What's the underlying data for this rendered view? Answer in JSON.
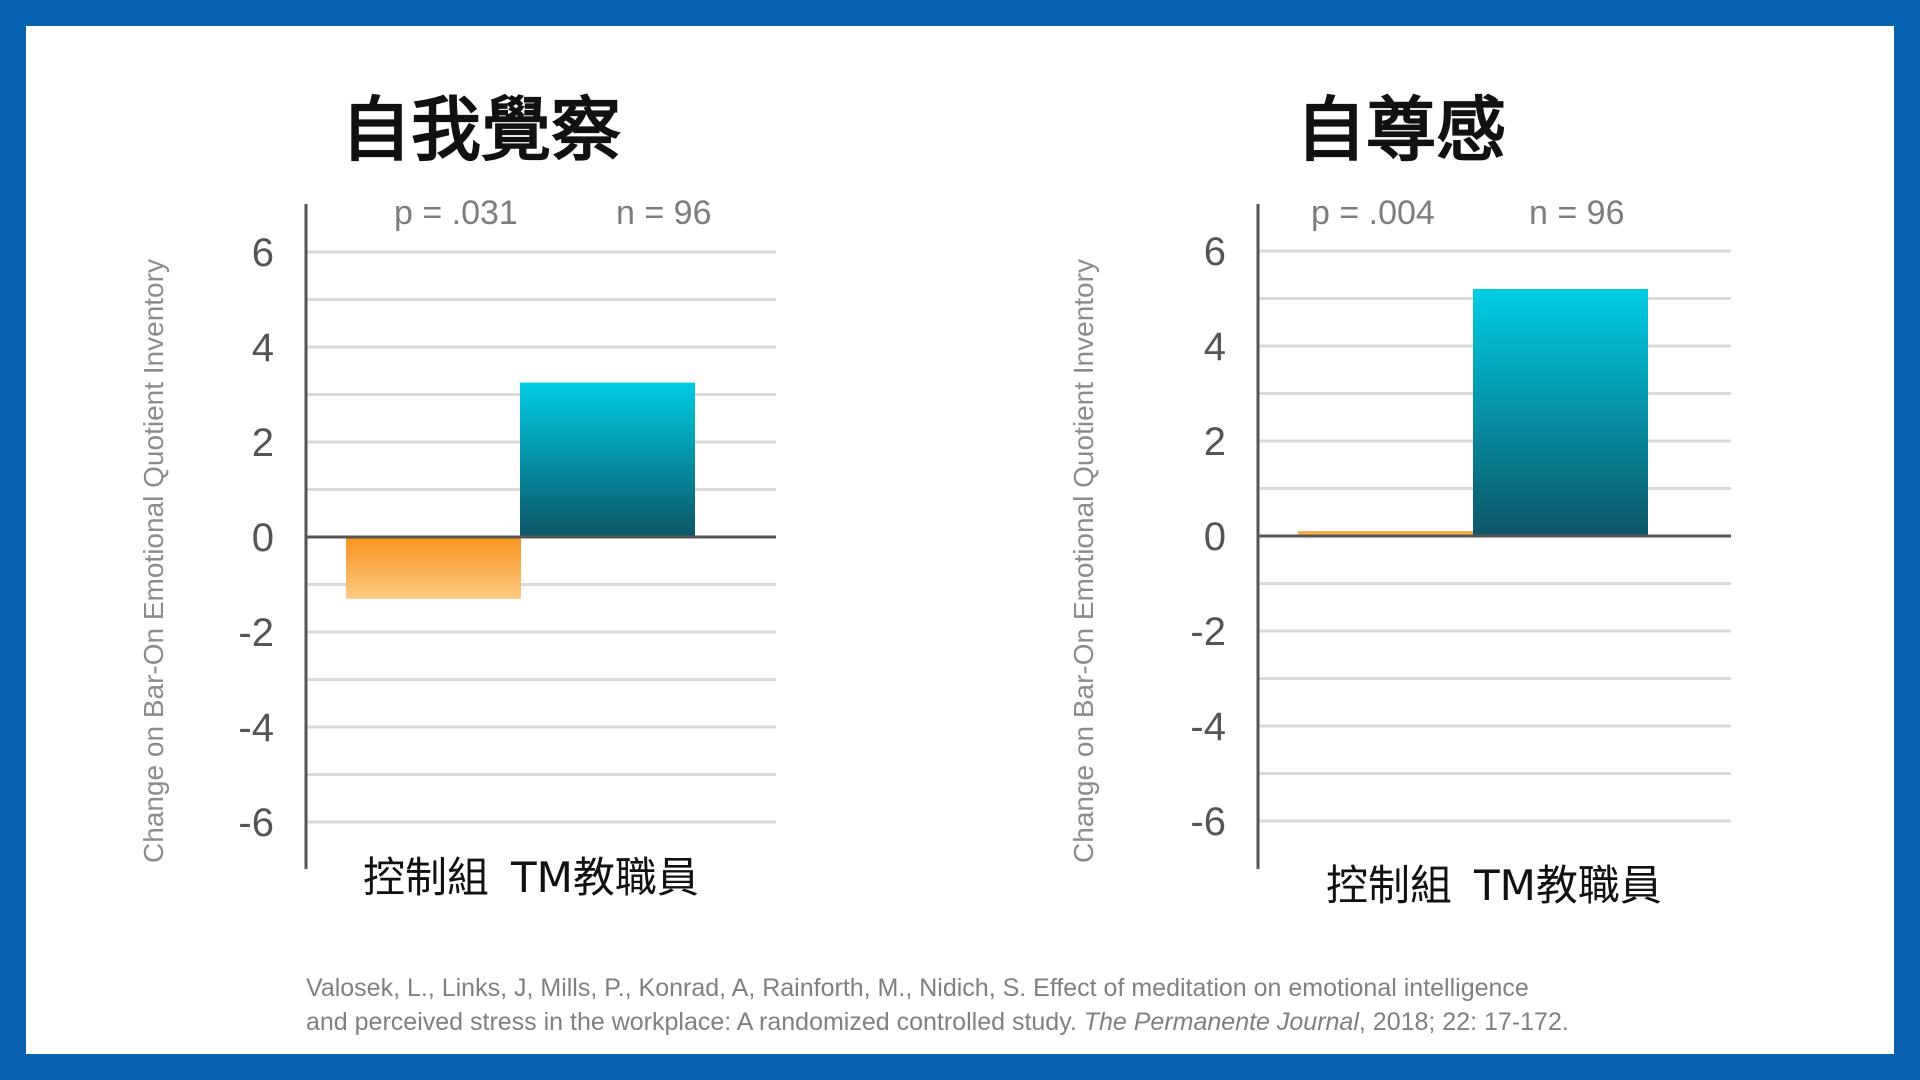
{
  "charts": [
    {
      "title": "自我覺察",
      "p_value": "p = .031",
      "n_value": "n = 96",
      "ylabel": "Change on Bar-On Emotional Quotient Inventory",
      "xlabels": [
        "控制組",
        "TM教職員"
      ]
    },
    {
      "title": "自尊感",
      "p_value": "p = .004",
      "n_value": "n = 96",
      "ylabel": "Change on Bar-On Emotional Quotient Inventory",
      "xlabels": [
        "控制組",
        "TM教職員"
      ]
    }
  ],
  "chart_data": [
    {
      "type": "bar",
      "title": "自我覺察",
      "categories": [
        "控制組",
        "TM教職員"
      ],
      "values": [
        -1.3,
        3.25
      ],
      "ylabel": "Change on Bar-On Emotional Quotient Inventory",
      "ylim": [
        -7,
        7
      ],
      "yticks": [
        6,
        4,
        2,
        0,
        -2,
        -4,
        -6
      ],
      "grid": true,
      "annotations": [
        "p = .031",
        "n = 96"
      ]
    },
    {
      "type": "bar",
      "title": "自尊感",
      "categories": [
        "控制組",
        "TM教職員"
      ],
      "values": [
        0.1,
        5.2
      ],
      "ylabel": "Change on Bar-On Emotional Quotient Inventory",
      "ylim": [
        -7,
        7
      ],
      "yticks": [
        6,
        4,
        2,
        0,
        -2,
        -4,
        -6
      ],
      "grid": true,
      "annotations": [
        "p = .004",
        "n = 96"
      ]
    }
  ],
  "colors": {
    "frame": "#0a63b2",
    "control_top": "#f7941d",
    "control_bottom": "#fdc982",
    "tm_top": "#00cde5",
    "tm_bottom": "#0c5566",
    "grid": "#d9d9d9",
    "axis": "#555555"
  },
  "citation": {
    "line1": "Valosek, L., Links, J,  Mills, P., Konrad, A, Rainforth, M., Nidich, S. Effect of meditation on emotional intelligence",
    "line2_pre": "and perceived stress in the workplace: A randomized controlled study. ",
    "journal": "The Permanente Journal",
    "line2_post": ", 2018; 22: 17-172."
  }
}
